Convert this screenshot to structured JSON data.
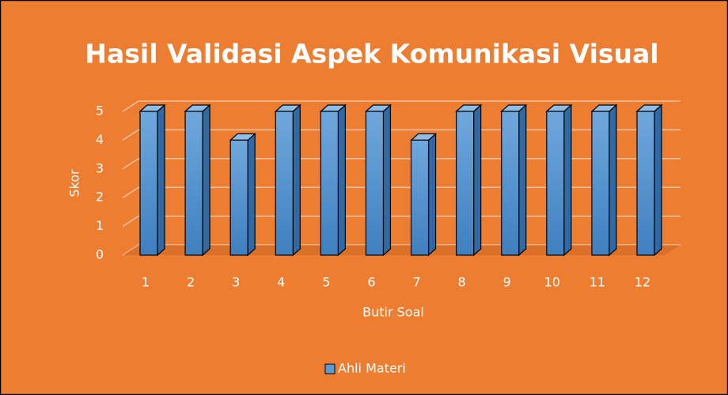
{
  "chart_data": {
    "type": "bar",
    "title": "Hasil Validasi Aspek Komunikasi Visual",
    "x_label": "Butir Soal",
    "y_label": "Skor",
    "categories": [
      "1",
      "2",
      "3",
      "4",
      "5",
      "6",
      "7",
      "8",
      "9",
      "10",
      "11",
      "12"
    ],
    "series": [
      {
        "name": "Ahli Materi",
        "color": "#5b9bd5",
        "values": [
          5,
          5,
          4,
          5,
          5,
          5,
          4,
          5,
          5,
          5,
          5,
          5
        ]
      }
    ],
    "ylim": [
      0,
      5
    ],
    "yticks": [
      0,
      1,
      2,
      3,
      4,
      5
    ],
    "grid": true,
    "legend": "bottom"
  }
}
